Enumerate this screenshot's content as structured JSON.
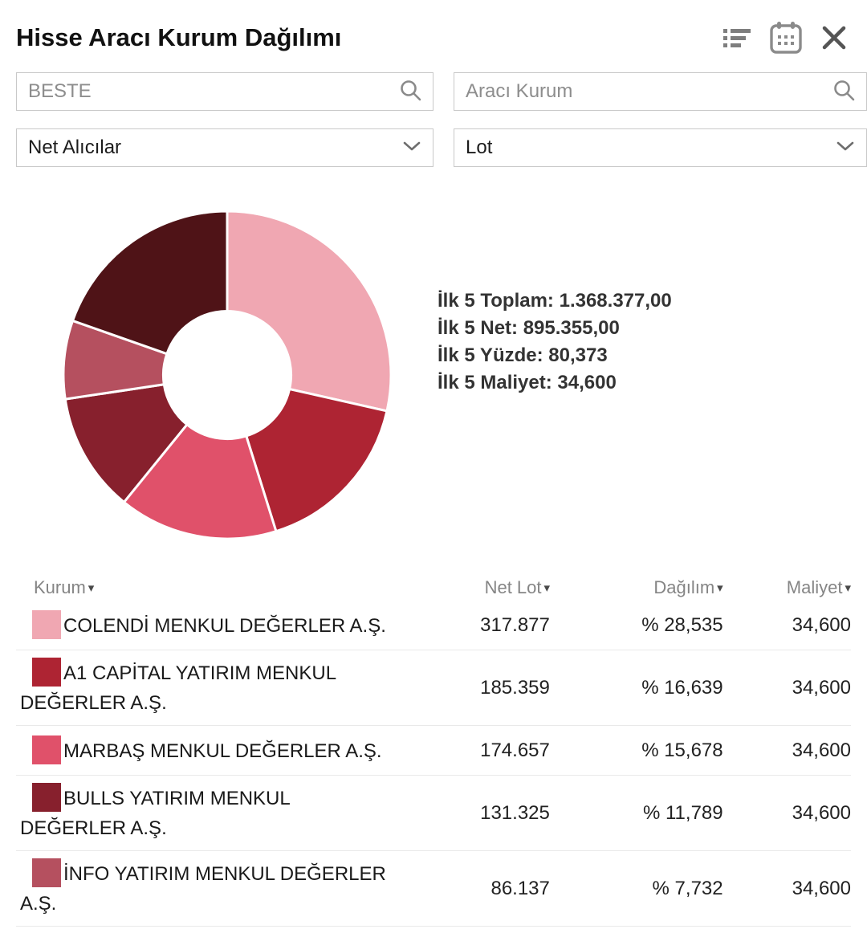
{
  "header": {
    "title": "Hisse Aracı Kurum Dağılımı",
    "icons": [
      "list-icon",
      "calendar-icon",
      "close-icon"
    ]
  },
  "filters": {
    "symbol_search": {
      "value": "BESTE"
    },
    "broker_search": {
      "placeholder": "Aracı Kurum"
    },
    "side_select": {
      "value": "Net Alıcılar"
    },
    "unit_select": {
      "value": "Lot"
    }
  },
  "summary": {
    "lines": [
      {
        "label": "İlk 5 Toplam:",
        "value": "1.368.377,00"
      },
      {
        "label": "İlk 5 Net:",
        "value": "895.355,00"
      },
      {
        "label": "İlk 5 Yüzde:",
        "value": "80,373"
      },
      {
        "label": "İlk 5 Maliyet:",
        "value": "34,600"
      }
    ]
  },
  "chart_data": {
    "type": "pie",
    "hole": 0.39,
    "start_angle_deg": -90,
    "direction": "clockwise",
    "labels": [
      "COLENDİ MENKUL DEĞERLER A.Ş.",
      "A1 CAPİTAL YATIRIM MENKUL DEĞERLER A.Ş.",
      "MARBAŞ MENKUL DEĞERLER A.Ş.",
      "BULLS YATIRIM MENKUL DEĞERLER A.Ş.",
      "İNFO YATIRIM MENKUL DEĞERLER A.Ş.",
      ""
    ],
    "values": [
      28.535,
      16.639,
      15.678,
      11.789,
      7.732,
      19.627
    ],
    "colors": [
      "#F0A7B2",
      "#AE2433",
      "#E0516A",
      "#87202D",
      "#B5505F",
      "#4F1317"
    ]
  },
  "table": {
    "sort_indicator": "▾",
    "headers": [
      {
        "label": "Kurum"
      },
      {
        "label": "Net Lot"
      },
      {
        "label": "Dağılım"
      },
      {
        "label": "Maliyet"
      }
    ],
    "rows": [
      {
        "color": "#F0A7B2",
        "kurum": "COLENDİ MENKUL DEĞERLER A.Ş.",
        "net_lot": "317.877",
        "dagilim": "% 28,535",
        "maliyet": "34,600"
      },
      {
        "color": "#AE2433",
        "kurum": "A1 CAPİTAL YATIRIM MENKUL DEĞERLER A.Ş.",
        "net_lot": "185.359",
        "dagilim": "% 16,639",
        "maliyet": "34,600"
      },
      {
        "color": "#E0516A",
        "kurum": "MARBAŞ MENKUL DEĞERLER A.Ş.",
        "net_lot": "174.657",
        "dagilim": "% 15,678",
        "maliyet": "34,600"
      },
      {
        "color": "#87202D",
        "kurum": "BULLS YATIRIM MENKUL DEĞERLER A.Ş.",
        "net_lot": "131.325",
        "dagilim": "% 11,789",
        "maliyet": "34,600"
      },
      {
        "color": "#B5505F",
        "kurum": "İNFO YATIRIM MENKUL DEĞERLER A.Ş.",
        "net_lot": "86.137",
        "dagilim": "% 7,732",
        "maliyet": "34,600"
      }
    ]
  }
}
